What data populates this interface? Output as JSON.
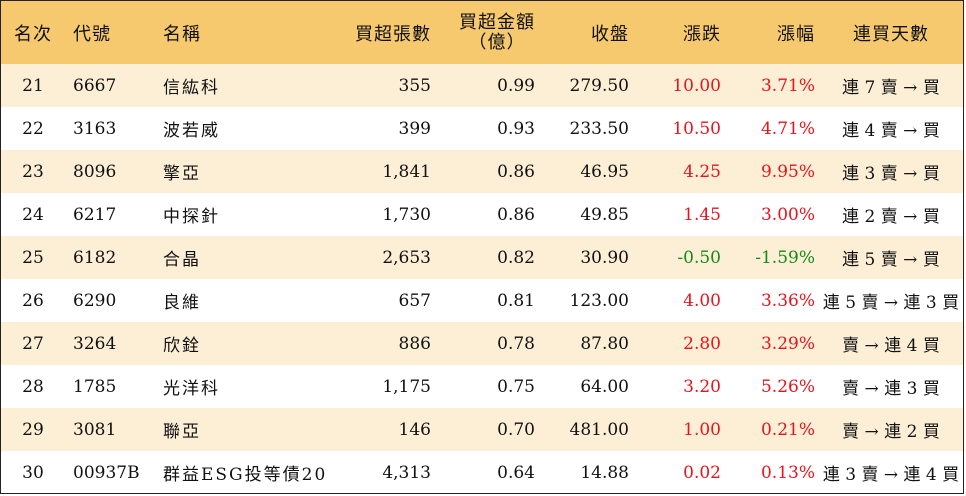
{
  "headers": {
    "rank": "名次",
    "code": "代號",
    "name": "名稱",
    "volume": "買超張數",
    "amount_line1": "買超金額",
    "amount_line2": "（億）",
    "close": "收盤",
    "change": "漲跌",
    "pct": "漲幅",
    "days": "連買天數"
  },
  "colors": {
    "header_bg": "#f6c96f",
    "alt_row_bg": "#fcefd6",
    "up": "#e5141d",
    "down": "#168a16"
  },
  "rows": [
    {
      "rank": "21",
      "code": "6667",
      "name": "信紘科",
      "volume": "355",
      "amount": "0.99",
      "close": "279.50",
      "change": "10.00",
      "pct": "3.71%",
      "days": "連 7 賣 → 買",
      "dir": "up"
    },
    {
      "rank": "22",
      "code": "3163",
      "name": "波若威",
      "volume": "399",
      "amount": "0.93",
      "close": "233.50",
      "change": "10.50",
      "pct": "4.71%",
      "days": "連 4 賣 → 買",
      "dir": "up"
    },
    {
      "rank": "23",
      "code": "8096",
      "name": "擎亞",
      "volume": "1,841",
      "amount": "0.86",
      "close": "46.95",
      "change": "4.25",
      "pct": "9.95%",
      "days": "連 3 賣 → 買",
      "dir": "up"
    },
    {
      "rank": "24",
      "code": "6217",
      "name": "中探針",
      "volume": "1,730",
      "amount": "0.86",
      "close": "49.85",
      "change": "1.45",
      "pct": "3.00%",
      "days": "連 2 賣 → 買",
      "dir": "up"
    },
    {
      "rank": "25",
      "code": "6182",
      "name": "合晶",
      "volume": "2,653",
      "amount": "0.82",
      "close": "30.90",
      "change": "-0.50",
      "pct": "-1.59%",
      "days": "連 5 賣 → 買",
      "dir": "down"
    },
    {
      "rank": "26",
      "code": "6290",
      "name": "良維",
      "volume": "657",
      "amount": "0.81",
      "close": "123.00",
      "change": "4.00",
      "pct": "3.36%",
      "days": "連 5 賣 → 連 3 買",
      "dir": "up"
    },
    {
      "rank": "27",
      "code": "3264",
      "name": "欣銓",
      "volume": "886",
      "amount": "0.78",
      "close": "87.80",
      "change": "2.80",
      "pct": "3.29%",
      "days": "賣 → 連 4 買",
      "dir": "up"
    },
    {
      "rank": "28",
      "code": "1785",
      "name": "光洋科",
      "volume": "1,175",
      "amount": "0.75",
      "close": "64.00",
      "change": "3.20",
      "pct": "5.26%",
      "days": "賣 → 連 3 買",
      "dir": "up"
    },
    {
      "rank": "29",
      "code": "3081",
      "name": "聯亞",
      "volume": "146",
      "amount": "0.70",
      "close": "481.00",
      "change": "1.00",
      "pct": "0.21%",
      "days": "賣 → 連 2 買",
      "dir": "up"
    },
    {
      "rank": "30",
      "code": "00937B",
      "name": "群益ESG投等債20",
      "volume": "4,313",
      "amount": "0.64",
      "close": "14.88",
      "change": "0.02",
      "pct": "0.13%",
      "days": "連 3 賣 → 連 4 買",
      "dir": "up"
    }
  ]
}
